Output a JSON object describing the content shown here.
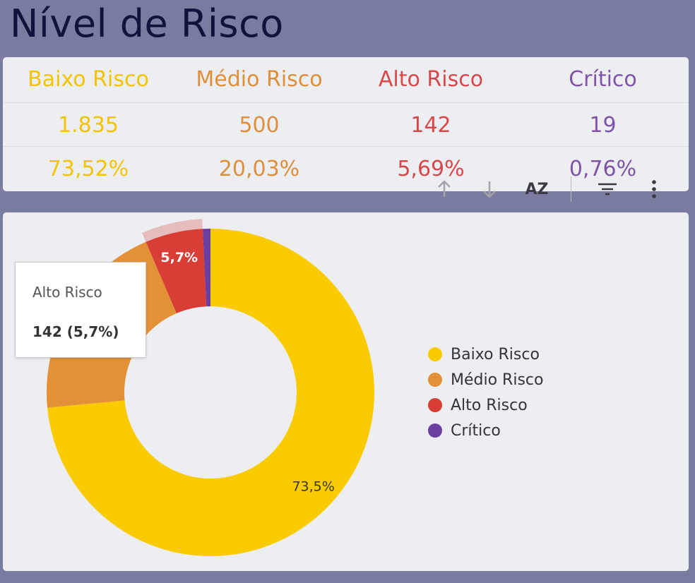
{
  "title": "Nível de Risco",
  "summary": {
    "columns": [
      {
        "label": "Baixo Risco",
        "count": "1.835",
        "percent": "73,52%",
        "color": "#f2c400"
      },
      {
        "label": "Médio Risco",
        "count": "500",
        "percent": "20,03%",
        "color": "#df8f3a"
      },
      {
        "label": "Alto Risco",
        "count": "142",
        "percent": "5,69%",
        "color": "#d8474a"
      },
      {
        "label": "Crítico",
        "count": "19",
        "percent": "0,76%",
        "color": "#7e55a8"
      }
    ]
  },
  "toolbar": {
    "icons": [
      "arrow-up-icon",
      "arrow-down-icon",
      "sort-az-icon",
      "filter-icon",
      "more-vert-icon"
    ],
    "sort_label": "AZ"
  },
  "tooltip": {
    "label": "Alto Risco",
    "value": "142 (5,7%)"
  },
  "chart_data": {
    "type": "pie",
    "donut": true,
    "categories": [
      "Baixo Risco",
      "Médio Risco",
      "Alto Risco",
      "Crítico"
    ],
    "values": [
      1835,
      500,
      142,
      19
    ],
    "colors": [
      "#facb00",
      "#e39137",
      "#d83d36",
      "#6a3fa0"
    ],
    "slice_labels": [
      "73,5%",
      "",
      "5,7%",
      ""
    ],
    "highlighted": "Alto Risco",
    "legend_position": "right"
  }
}
